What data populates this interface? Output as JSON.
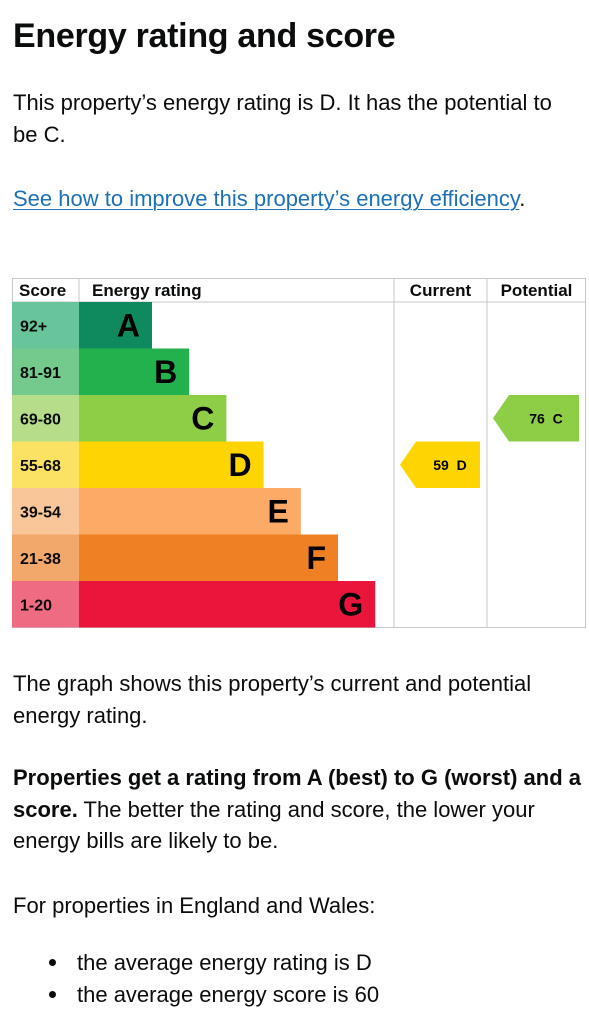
{
  "heading": "Energy rating and score",
  "intro": "This property’s energy rating is D. It has the potential to be C.",
  "improve_link": "See how to improve this property’s energy efficiency",
  "improve_suffix": ".",
  "graph_caption": "The graph shows this property’s current and potential energy rating.",
  "ratings_bold": "Properties get a rating from A (best) to G (worst) and a score.",
  "ratings_rest": " The better the rating and score, the lower your energy bills are likely to be.",
  "england_text": "For properties in England and Wales:",
  "averages": [
    "the average energy rating is D",
    "the average energy score is 60"
  ],
  "chart_data": {
    "type": "bar",
    "headers": {
      "score": "Score",
      "rating": "Energy rating",
      "current": "Current",
      "potential": "Potential"
    },
    "bands": [
      {
        "score": "92+",
        "letter": "A",
        "color": "#0f8a5f",
        "score_color": "#68c49b"
      },
      {
        "score": "81-91",
        "letter": "B",
        "color": "#23b14d",
        "score_color": "#74c98c"
      },
      {
        "score": "69-80",
        "letter": "C",
        "color": "#8dce46",
        "score_color": "#b6de8a"
      },
      {
        "score": "55-68",
        "letter": "D",
        "color": "#ffd500",
        "score_color": "#fbe263"
      },
      {
        "score": "39-54",
        "letter": "E",
        "color": "#fcaa65",
        "score_color": "#f9c699"
      },
      {
        "score": "21-38",
        "letter": "F",
        "color": "#ef8023",
        "score_color": "#f3a86b"
      },
      {
        "score": "1-20",
        "letter": "G",
        "color": "#e9153b",
        "score_color": "#ef6b82"
      }
    ],
    "current": {
      "value": 59,
      "band": "D",
      "label": "59  D",
      "color": "#ffd500"
    },
    "potential": {
      "value": 76,
      "band": "C",
      "label": "76  C",
      "color": "#8dce46"
    }
  }
}
